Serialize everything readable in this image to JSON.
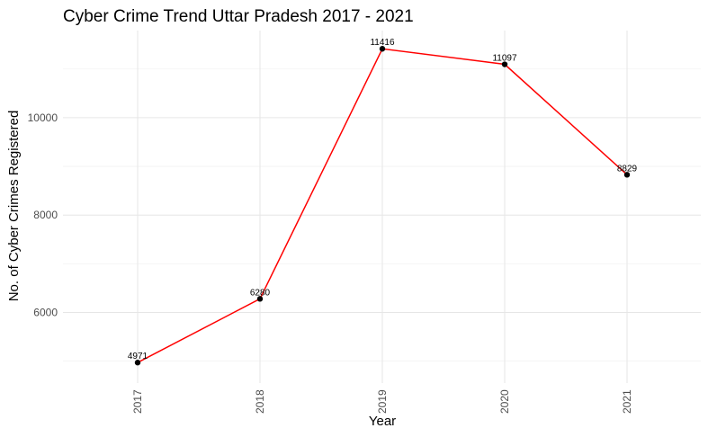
{
  "chart_data": {
    "type": "line",
    "title": "Cyber Crime Trend Uttar Pradesh 2017 - 2021",
    "xlabel": "Year",
    "ylabel": "No. of Cyber Crimes Registered",
    "categories": [
      "2017",
      "2018",
      "2019",
      "2020",
      "2021"
    ],
    "values": [
      4971,
      6280,
      11416,
      11097,
      8829
    ],
    "data_labels": [
      "4971",
      "6280",
      "11416",
      "11097",
      "8829"
    ],
    "yticks": [
      6000,
      8000,
      10000
    ],
    "ytick_labels": [
      "6000",
      "8000",
      "10000"
    ],
    "yminor": [
      5000,
      7000,
      9000,
      11000
    ],
    "ylim": [
      4550,
      11790
    ],
    "grid": true,
    "line_color": "#ff0000",
    "point_color": "#000000"
  }
}
